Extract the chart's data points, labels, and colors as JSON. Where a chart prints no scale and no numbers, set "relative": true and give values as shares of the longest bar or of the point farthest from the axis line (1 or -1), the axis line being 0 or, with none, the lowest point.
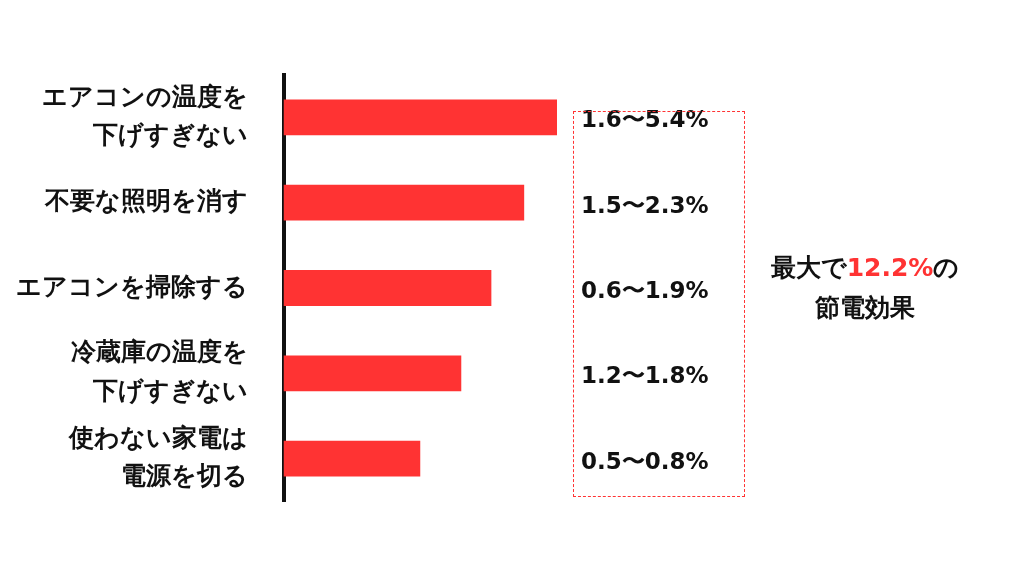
{
  "chart_data": {
    "type": "bar",
    "orientation": "horizontal",
    "relative": true,
    "categories": [
      "エアコンの温度を下げすぎない",
      "不要な照明を消す",
      "エアコンを掃除する",
      "冷蔵庫の温度を下げすぎない",
      "使わない家電は電源を切る"
    ],
    "values": [
      1,
      0.88,
      0.76,
      0.65,
      0.5
    ],
    "color": "#ff3333",
    "annotations": [
      "1.6〜5.4%",
      "1.5〜2.3%",
      "0.6〜1.9%",
      "1.2〜1.8%",
      "0.5〜0.8%",
      "最大で12.2%の節電効果"
    ]
  }
}
